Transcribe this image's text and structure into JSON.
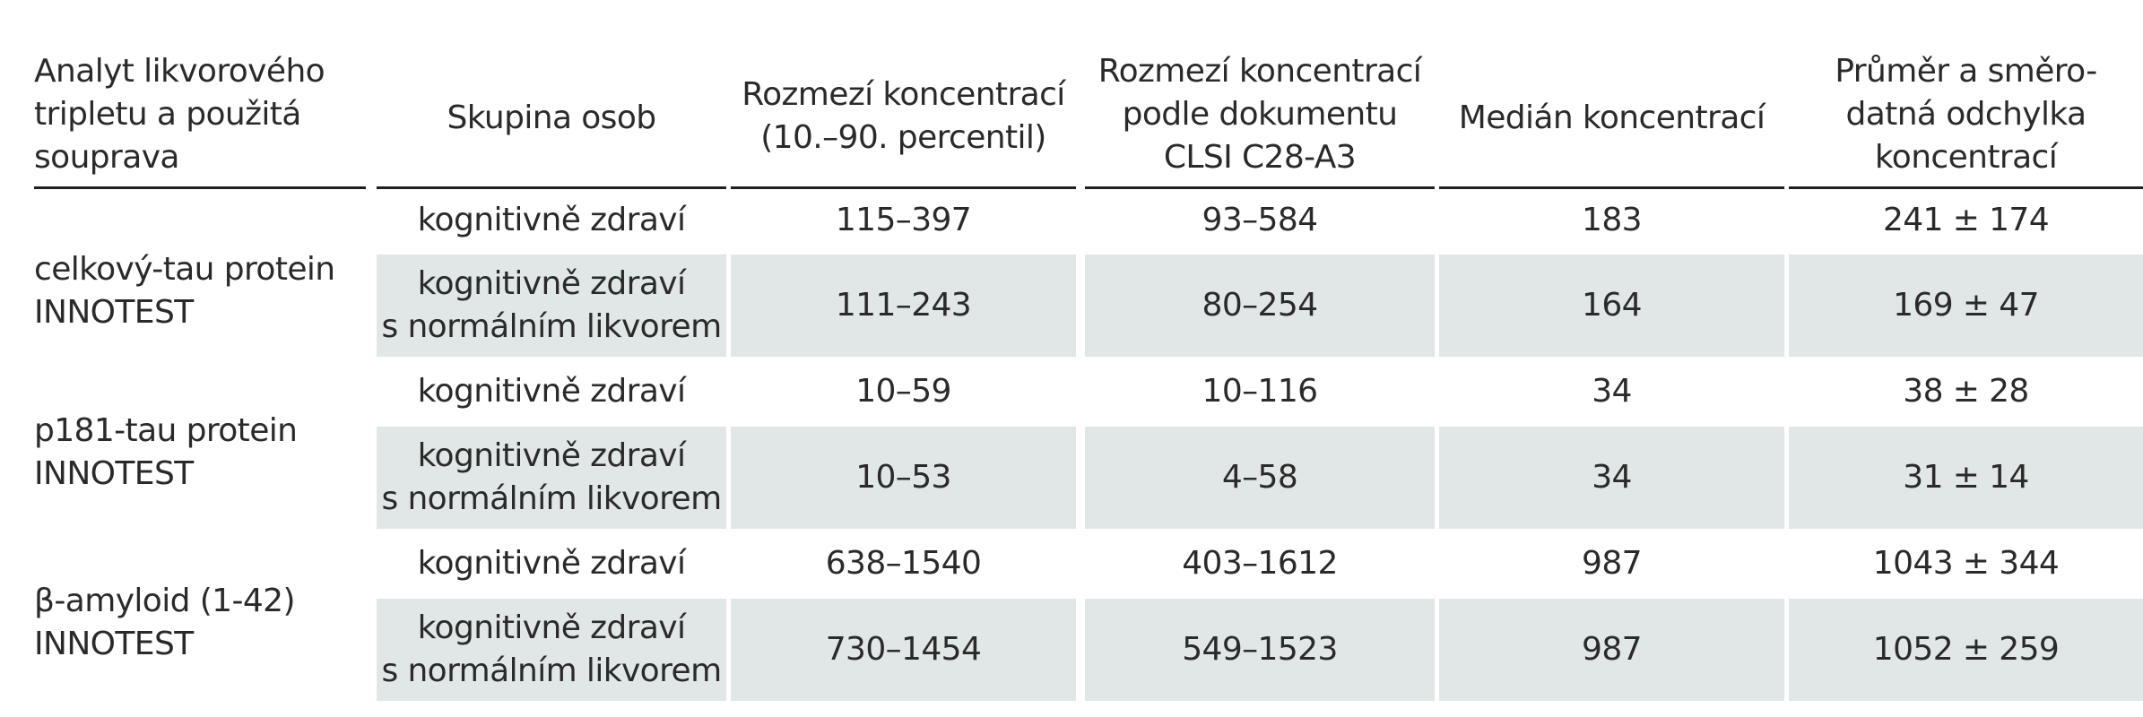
{
  "colors": {
    "shade": "#e1e7e6",
    "text": "#2a2a2a",
    "rule": "#1f1f1f"
  },
  "headers": [
    "Analyt likvorového\ntripletu a použitá\nsouprava",
    "Skupina osob",
    "Rozmezí koncentrací\n(10.–90. percentil)",
    "Rozmezí koncentrací\npodle dokumentu\nCLSI C28-A3",
    "Medián koncentrací",
    "Průměr a směro-\ndatná odchylka\nkoncentrací"
  ],
  "groups": [
    {
      "analyte": "celkový-tau protein\nINNOTEST",
      "rows": [
        {
          "group": "kognitivně zdraví",
          "range": "115–397",
          "clsi": "93–584",
          "median": "183",
          "mean_sd": "241 ± 174"
        },
        {
          "group": "kognitivně zdraví\ns normálním likvorem",
          "range": "111–243",
          "clsi": "80–254",
          "median": "164",
          "mean_sd": "169 ± 47"
        }
      ]
    },
    {
      "analyte": "p181-tau protein\nINNOTEST",
      "rows": [
        {
          "group": "kognitivně zdraví",
          "range": "10–59",
          "clsi": "10–116",
          "median": "34",
          "mean_sd": "38 ± 28"
        },
        {
          "group": "kognitivně zdraví\ns normálním likvorem",
          "range": "10–53",
          "clsi": "4–58",
          "median": "34",
          "mean_sd": "31 ± 14"
        }
      ]
    },
    {
      "analyte": "β-amyloid (1-42)\nINNOTEST",
      "rows": [
        {
          "group": "kognitivně zdraví",
          "range": "638–1540",
          "clsi": "403–1612",
          "median": "987",
          "mean_sd": "1043 ± 344"
        },
        {
          "group": "kognitivně zdraví\ns normálním likvorem",
          "range": "730–1454",
          "clsi": "549–1523",
          "median": "987",
          "mean_sd": "1052 ± 259"
        }
      ]
    }
  ]
}
